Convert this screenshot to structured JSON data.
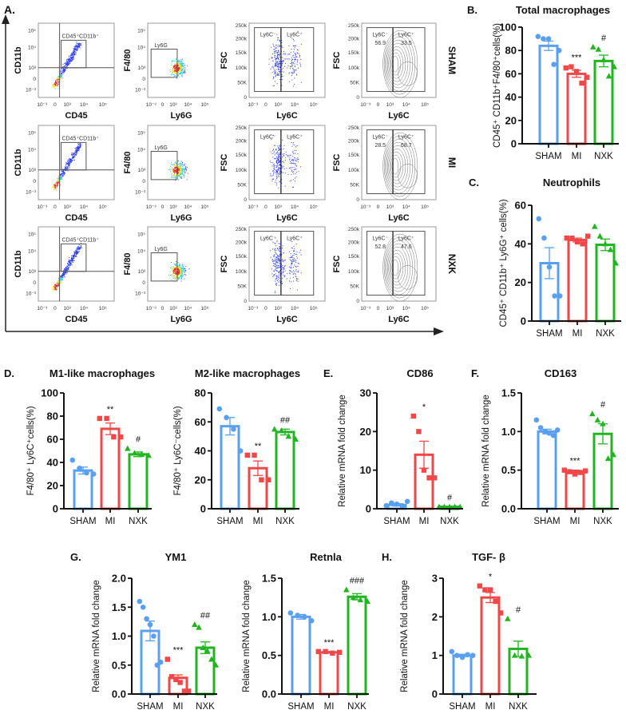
{
  "figure": {
    "colors": {
      "SHAM": "#5aa0f0",
      "MI": "#f04848",
      "NXK": "#22b522",
      "axis": "#111111",
      "gate": "#555555"
    },
    "panel_a": {
      "letter": "A.",
      "rows": [
        "SHAM",
        "MI",
        "NXK"
      ],
      "columns": [
        {
          "xlabel": "CD45",
          "ylabel": "CD11b",
          "gate_label": "CD45⁺CD11b⁺",
          "xticks": [
            "10⁻³",
            "0",
            "10³",
            "10⁴",
            "10⁵"
          ],
          "yticks": [
            "10⁵",
            "10⁴",
            "10³",
            "0",
            "10⁻³"
          ]
        },
        {
          "xlabel": "Ly6G",
          "ylabel": "F4/80",
          "gate_label": "Ly6G",
          "xticks": [
            "10⁻³",
            "0",
            "10³",
            "10⁴",
            "10⁵"
          ],
          "yticks": [
            "10⁵",
            "10⁴",
            "10³",
            "0",
            "10⁻³"
          ]
        },
        {
          "xlabel": "Ly6C",
          "ylabel": "FSC",
          "gate_labels": [
            "Ly6C⁻",
            "Ly6C⁺"
          ],
          "xticks": [
            "10⁻³",
            "0",
            "10³",
            "10⁴",
            "10⁵"
          ],
          "yticks": [
            "250k",
            "200k",
            "150k",
            "100k",
            "50K",
            "0"
          ]
        },
        {
          "xlabel": "Ly6C",
          "ylabel": "FSC",
          "gate_labels": [
            "Ly6C⁻",
            "Ly6C⁺"
          ],
          "xticks": [
            "10⁻³",
            "0",
            "10³",
            "10⁴",
            "10⁵"
          ],
          "yticks": [
            "250k",
            "200k",
            "150k",
            "100k",
            "50K",
            "0"
          ]
        }
      ],
      "ly6c_percentages": [
        {
          "neg": "56.9",
          "pos": "33.5"
        },
        {
          "neg": "28.5",
          "pos": "68.7"
        },
        {
          "neg": "52.8",
          "pos": "47.6"
        }
      ]
    }
  },
  "chart_data": [
    {
      "id": "B",
      "letter": "B.",
      "type": "bar",
      "title": "Total macrophages",
      "ylabel": "CD45⁺ CD11b⁺F4/80⁺cells(%)",
      "categories": [
        "SHAM",
        "MI",
        "NXK"
      ],
      "ylim": [
        0,
        100
      ],
      "yticks": [
        0,
        20,
        40,
        60,
        80,
        100
      ],
      "decimals": 0,
      "series": [
        {
          "name": "SHAM",
          "mean": 84,
          "sem": 4,
          "points": [
            92,
            90,
            90,
            68,
            80
          ],
          "significance": ""
        },
        {
          "name": "MI",
          "mean": 60,
          "sem": 3,
          "points": [
            65,
            66,
            62,
            52,
            57
          ],
          "significance": "***"
        },
        {
          "name": "NXK",
          "mean": 71,
          "sem": 5,
          "points": [
            83,
            81,
            72,
            58,
            66
          ],
          "significance": "#"
        }
      ]
    },
    {
      "id": "C",
      "letter": "C.",
      "type": "bar",
      "title": "Neutrophils",
      "ylabel": "CD45⁺ CD11b⁺ Ly6G⁺ cells(%)",
      "categories": [
        "SHAM",
        "MI",
        "NXK"
      ],
      "ylim": [
        0,
        60
      ],
      "yticks": [
        0,
        20,
        40,
        60
      ],
      "decimals": 0,
      "series": [
        {
          "name": "SHAM",
          "mean": 30,
          "sem": 8,
          "points": [
            53,
            43,
            28,
            13,
            13
          ],
          "significance": ""
        },
        {
          "name": "MI",
          "mean": 42,
          "sem": 1,
          "points": [
            43,
            43,
            41,
            40,
            44
          ],
          "significance": ""
        },
        {
          "name": "NXK",
          "mean": 39.5,
          "sem": 3,
          "points": [
            49,
            44,
            40,
            37,
            30
          ],
          "significance": ""
        }
      ]
    },
    {
      "id": "M1",
      "letter": "D.",
      "type": "bar",
      "title": "M1-like macrophages",
      "ylabel": "F4/80⁺ Ly6C⁺cells(%)",
      "categories": [
        "SHAM",
        "MI",
        "NXK"
      ],
      "ylim": [
        0,
        100
      ],
      "yticks": [
        0,
        20,
        40,
        60,
        80,
        100
      ],
      "decimals": 0,
      "series": [
        {
          "name": "SHAM",
          "mean": 33,
          "sem": 3,
          "points": [
            42,
            35,
            31,
            30
          ],
          "significance": ""
        },
        {
          "name": "MI",
          "mean": 69,
          "sem": 5,
          "points": [
            78,
            78,
            62,
            62
          ],
          "significance": "**"
        },
        {
          "name": "NXK",
          "mean": 47,
          "sem": 2,
          "points": [
            52,
            48,
            47,
            46
          ],
          "significance": "#"
        }
      ]
    },
    {
      "id": "M2",
      "letter": "",
      "type": "bar",
      "title": "M2-like macrophages",
      "ylabel": "F4/80⁺ Ly6C⁻cells(%)",
      "categories": [
        "SHAM",
        "MI",
        "NXK"
      ],
      "ylim": [
        0,
        80
      ],
      "yticks": [
        0,
        20,
        40,
        60,
        80
      ],
      "decimals": 0,
      "series": [
        {
          "name": "SHAM",
          "mean": 57,
          "sem": 6,
          "points": [
            69,
            63,
            55,
            40
          ],
          "significance": ""
        },
        {
          "name": "MI",
          "mean": 28,
          "sem": 5,
          "points": [
            37,
            37,
            20,
            20
          ],
          "significance": "**"
        },
        {
          "name": "NXK",
          "mean": 53,
          "sem": 2,
          "points": [
            55,
            54,
            50,
            48
          ],
          "significance": "##"
        }
      ]
    },
    {
      "id": "CD86",
      "letter": "E.",
      "type": "bar",
      "title": "CD86",
      "ylabel": "Relative mRNA fold change",
      "categories": [
        "SHAM",
        "MI",
        "NXK"
      ],
      "ylim": [
        0,
        30
      ],
      "yticks": [
        0,
        10,
        20,
        30
      ],
      "decimals": 0,
      "series": [
        {
          "name": "SHAM",
          "mean": 1,
          "sem": 0.3,
          "points": [
            0.8,
            1.5,
            1.2,
            0.8,
            1.9
          ],
          "significance": ""
        },
        {
          "name": "MI",
          "mean": 14,
          "sem": 3.5,
          "points": [
            24,
            20,
            10,
            8,
            8
          ],
          "significance": "*"
        },
        {
          "name": "NXK",
          "mean": 0.5,
          "sem": 0.05,
          "points": [
            0.5,
            0.5,
            0.5,
            0.5,
            0.5
          ],
          "significance": "#"
        }
      ]
    },
    {
      "id": "CD163",
      "letter": "F.",
      "type": "bar",
      "title": "CD163",
      "ylabel": "Relative mRNA fold change",
      "categories": [
        "SHAM",
        "MI",
        "NXK"
      ],
      "ylim": [
        0,
        1.5
      ],
      "yticks": [
        0,
        0.5,
        1,
        1.5
      ],
      "decimals": 1,
      "series": [
        {
          "name": "SHAM",
          "mean": 1.0,
          "sem": 0.03,
          "points": [
            1.15,
            1.05,
            1.0,
            0.98,
            0.95,
            1.02
          ],
          "significance": ""
        },
        {
          "name": "MI",
          "mean": 0.48,
          "sem": 0.02,
          "points": [
            0.5,
            0.48,
            0.45,
            0.47,
            0.49
          ],
          "significance": "***"
        },
        {
          "name": "NXK",
          "mean": 0.97,
          "sem": 0.13,
          "points": [
            1.23,
            1.15,
            1.1,
            0.65,
            0.7
          ],
          "significance": "#"
        }
      ]
    },
    {
      "id": "YM1",
      "letter": "G.",
      "type": "bar",
      "title": "YM1",
      "ylabel": "Relative mRNA fold change",
      "categories": [
        "SHAM",
        "MI",
        "NXK"
      ],
      "ylim": [
        0,
        2
      ],
      "yticks": [
        0,
        0.5,
        1,
        1.5,
        2
      ],
      "decimals": 1,
      "series": [
        {
          "name": "SHAM",
          "mean": 1.09,
          "sem": 0.17,
          "points": [
            1.6,
            1.5,
            1.3,
            1.2,
            1.0,
            0.5,
            0.55
          ],
          "significance": ""
        },
        {
          "name": "MI",
          "mean": 0.28,
          "sem": 0.05,
          "points": [
            0.6,
            0.3,
            0.25,
            0.2,
            0.05,
            0.05
          ],
          "significance": "***"
        },
        {
          "name": "NXK",
          "mean": 0.8,
          "sem": 0.1,
          "points": [
            1.2,
            1.15,
            0.8,
            0.75,
            0.6,
            0.5
          ],
          "significance": "##"
        }
      ]
    },
    {
      "id": "Retnla",
      "letter": "",
      "type": "bar",
      "title": "Retnla",
      "ylabel": "Relative mRNA fold change",
      "categories": [
        "SHAM",
        "MI",
        "NXK"
      ],
      "ylim": [
        0,
        1.5
      ],
      "yticks": [
        0,
        0.5,
        1,
        1.5
      ],
      "decimals": 1,
      "series": [
        {
          "name": "SHAM",
          "mean": 1.0,
          "sem": 0.03,
          "points": [
            1.05,
            1.02,
            1.0,
            0.95
          ],
          "significance": ""
        },
        {
          "name": "MI",
          "mean": 0.54,
          "sem": 0.01,
          "points": [
            0.55,
            0.55,
            0.53,
            0.54
          ],
          "significance": "***"
        },
        {
          "name": "NXK",
          "mean": 1.26,
          "sem": 0.04,
          "points": [
            1.35,
            1.25,
            1.22,
            1.2
          ],
          "significance": "###"
        }
      ]
    },
    {
      "id": "TGF",
      "letter": "H.",
      "type": "bar",
      "title": "TGF- β",
      "ylabel": "Relative mRNA fold change",
      "categories": [
        "SHAM",
        "MI",
        "NXK"
      ],
      "ylim": [
        0,
        3
      ],
      "yticks": [
        0,
        1,
        2,
        3
      ],
      "decimals": 0,
      "series": [
        {
          "name": "SHAM",
          "mean": 1.0,
          "sem": 0.03,
          "points": [
            1.1,
            1.0,
            0.95,
            1.02,
            1.0
          ],
          "significance": ""
        },
        {
          "name": "MI",
          "mean": 2.5,
          "sem": 0.13,
          "points": [
            2.8,
            2.7,
            2.7,
            2.4,
            2.1
          ],
          "significance": "*"
        },
        {
          "name": "NXK",
          "mean": 1.17,
          "sem": 0.2,
          "points": [
            1.95,
            1.0,
            0.98,
            1.0
          ],
          "significance": "#"
        }
      ]
    }
  ]
}
